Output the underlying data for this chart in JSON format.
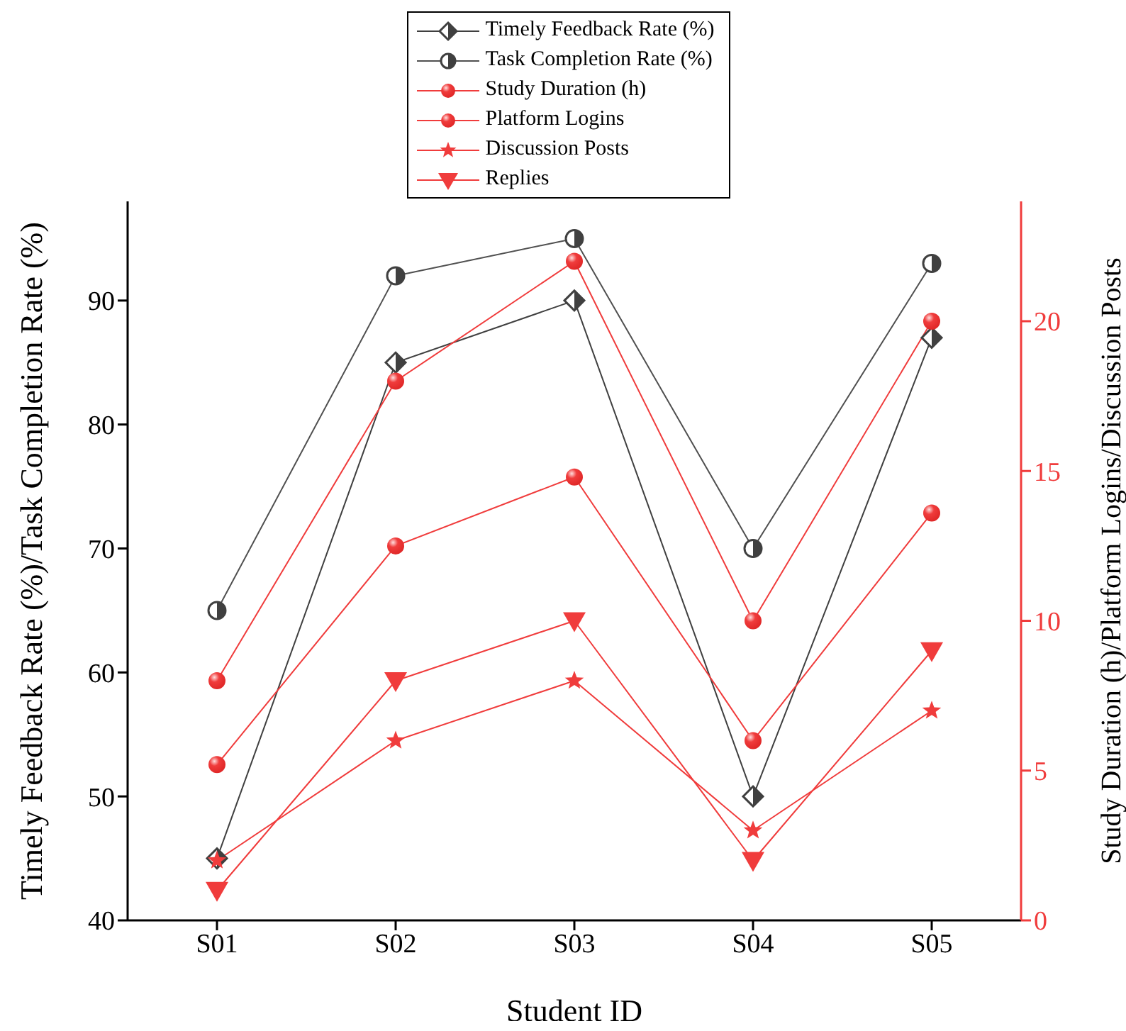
{
  "chart_data": {
    "type": "line",
    "xlabel": "Student ID",
    "ylabel": "Timely Feedback Rate (%)/Task Completion Rate (%)",
    "y2label": "Study Duration (h)/Platform Logins/Discussion Posts",
    "categories": [
      "S01",
      "S02",
      "S03",
      "S04",
      "S05"
    ],
    "series": [
      {
        "name": "Timely Feedback Rate (%)",
        "color": "#404040",
        "marker": "diamond",
        "axis": "y",
        "values": [
          45,
          85,
          90,
          50,
          87
        ]
      },
      {
        "name": "Task Completion Rate (%)",
        "color": "#505050",
        "marker": "circle",
        "axis": "y",
        "values": [
          65,
          92,
          95,
          70,
          93
        ]
      },
      {
        "name": "Study Duration (h)",
        "color": "#f03c3c",
        "marker": "circle",
        "axis": "y2",
        "values": [
          5.2,
          12.5,
          14.8,
          6,
          13.6
        ]
      },
      {
        "name": "Platform Logins",
        "color": "#f03c3c",
        "marker": "circle",
        "axis": "y2",
        "values": [
          8,
          18,
          22,
          10,
          20
        ]
      },
      {
        "name": "Discussion Posts",
        "color": "#f03c3c",
        "marker": "star",
        "axis": "y2",
        "values": [
          2,
          6,
          8,
          3,
          7
        ]
      },
      {
        "name": "Replies",
        "color": "#f03c3c",
        "marker": "triangle",
        "axis": "y2",
        "values": [
          1,
          8,
          10,
          2,
          9
        ]
      }
    ],
    "ylim": [
      40,
      98
    ],
    "yticks": [
      40,
      50,
      60,
      70,
      80,
      90
    ],
    "y2lim": [
      0,
      24
    ],
    "y2ticks": [
      0,
      5,
      10,
      15,
      20
    ],
    "grid": false,
    "legend": "top",
    "line_style": "solid"
  }
}
